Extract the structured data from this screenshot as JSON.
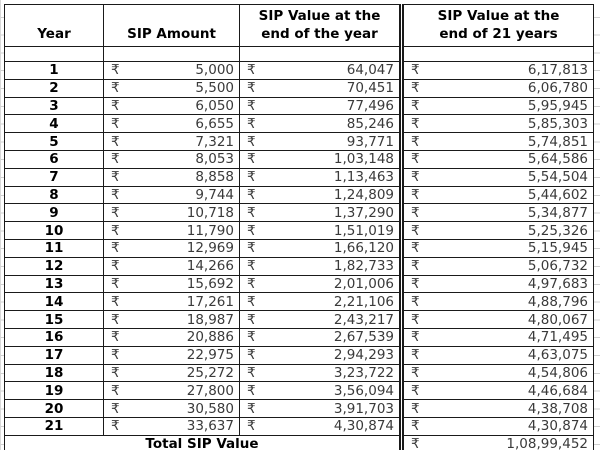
{
  "colors": {
    "background": "#ffffff",
    "border": "#1a1a1a",
    "header_text": "#000000",
    "number_text": "#3a3a3a",
    "gridline_stub": "#cfcfcf"
  },
  "table": {
    "currency_symbol": "₹",
    "header": {
      "year": "Year",
      "amount": "SIP Amount",
      "value_year_end_line1": "SIP Value at the",
      "value_year_end_line2": "end of the year",
      "value_21y_line1": "SIP Value at the",
      "value_21y_line2": "end of 21 years"
    },
    "rows": [
      {
        "year": "1",
        "amount": "5,000",
        "value_year_end": "64,047",
        "value_21_years": "6,17,813"
      },
      {
        "year": "2",
        "amount": "5,500",
        "value_year_end": "70,451",
        "value_21_years": "6,06,780"
      },
      {
        "year": "3",
        "amount": "6,050",
        "value_year_end": "77,496",
        "value_21_years": "5,95,945"
      },
      {
        "year": "4",
        "amount": "6,655",
        "value_year_end": "85,246",
        "value_21_years": "5,85,303"
      },
      {
        "year": "5",
        "amount": "7,321",
        "value_year_end": "93,771",
        "value_21_years": "5,74,851"
      },
      {
        "year": "6",
        "amount": "8,053",
        "value_year_end": "1,03,148",
        "value_21_years": "5,64,586"
      },
      {
        "year": "7",
        "amount": "8,858",
        "value_year_end": "1,13,463",
        "value_21_years": "5,54,504"
      },
      {
        "year": "8",
        "amount": "9,744",
        "value_year_end": "1,24,809",
        "value_21_years": "5,44,602"
      },
      {
        "year": "9",
        "amount": "10,718",
        "value_year_end": "1,37,290",
        "value_21_years": "5,34,877"
      },
      {
        "year": "10",
        "amount": "11,790",
        "value_year_end": "1,51,019",
        "value_21_years": "5,25,326"
      },
      {
        "year": "11",
        "amount": "12,969",
        "value_year_end": "1,66,120",
        "value_21_years": "5,15,945"
      },
      {
        "year": "12",
        "amount": "14,266",
        "value_year_end": "1,82,733",
        "value_21_years": "5,06,732"
      },
      {
        "year": "13",
        "amount": "15,692",
        "value_year_end": "2,01,006",
        "value_21_years": "4,97,683"
      },
      {
        "year": "14",
        "amount": "17,261",
        "value_year_end": "2,21,106",
        "value_21_years": "4,88,796"
      },
      {
        "year": "15",
        "amount": "18,987",
        "value_year_end": "2,43,217",
        "value_21_years": "4,80,067"
      },
      {
        "year": "16",
        "amount": "20,886",
        "value_year_end": "2,67,539",
        "value_21_years": "4,71,495"
      },
      {
        "year": "17",
        "amount": "22,975",
        "value_year_end": "2,94,293",
        "value_21_years": "4,63,075"
      },
      {
        "year": "18",
        "amount": "25,272",
        "value_year_end": "3,23,722",
        "value_21_years": "4,54,806"
      },
      {
        "year": "19",
        "amount": "27,800",
        "value_year_end": "3,56,094",
        "value_21_years": "4,46,684"
      },
      {
        "year": "20",
        "amount": "30,580",
        "value_year_end": "3,91,703",
        "value_21_years": "4,38,708"
      },
      {
        "year": "21",
        "amount": "33,637",
        "value_year_end": "4,30,874",
        "value_21_years": "4,30,874"
      }
    ],
    "total": {
      "label": "Total SIP Value",
      "value": "1,08,99,452"
    }
  }
}
